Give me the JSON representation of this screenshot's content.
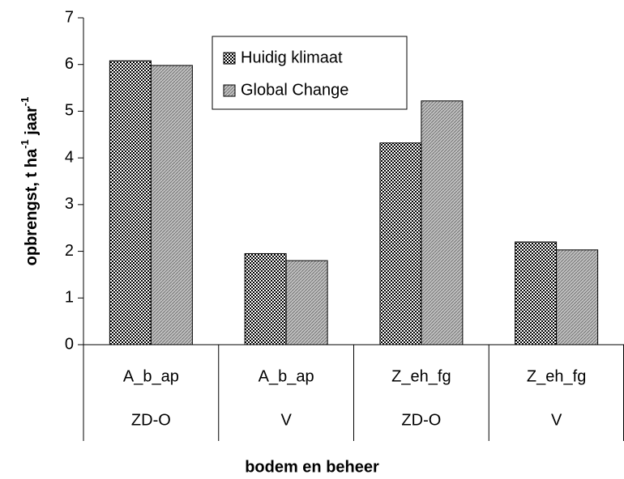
{
  "chart_data": {
    "type": "bar",
    "categories": [
      "A_b_ap",
      "A_b_ap",
      "Z_eh_fg",
      "Z_eh_fg"
    ],
    "categories_level2": [
      "ZD-O",
      "V",
      "ZD-O",
      "V"
    ],
    "series": [
      {
        "name": "Huidig klimaat",
        "color": "#000000",
        "values": [
          6.08,
          1.95,
          4.32,
          2.2
        ]
      },
      {
        "name": "Global Change",
        "color": "#c0c0c0",
        "values": [
          5.98,
          1.8,
          5.22,
          2.03
        ]
      }
    ],
    "ylim": [
      0,
      7
    ],
    "yticks": [
      0,
      1,
      2,
      3,
      4,
      5,
      6,
      7
    ],
    "ylabel": [
      "opbrengst, t ha",
      "-1",
      " jaar",
      "-1"
    ],
    "xlabel": "bodem en beheer",
    "legend": "top"
  }
}
